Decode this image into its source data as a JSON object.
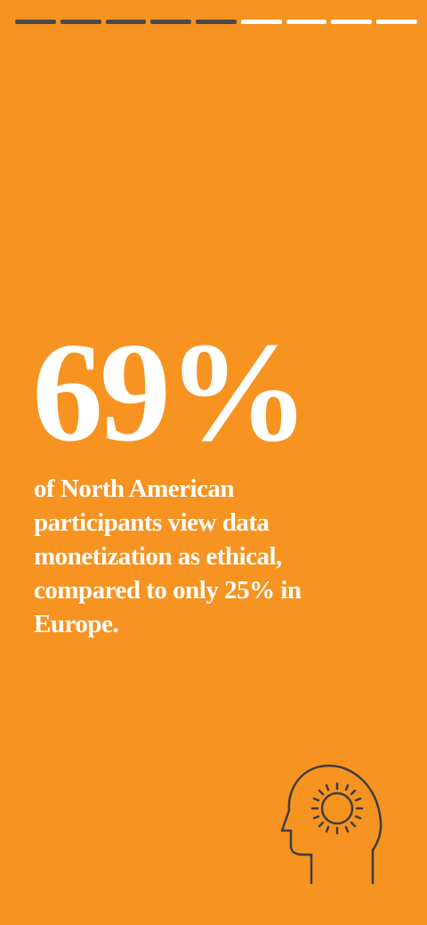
{
  "progress": {
    "total": 9,
    "completed": 5
  },
  "stat": "69%",
  "body_lines": [
    "of North American",
    "participants view data",
    "monetization as ethical,",
    "compared to only 25% in",
    "Europe."
  ]
}
